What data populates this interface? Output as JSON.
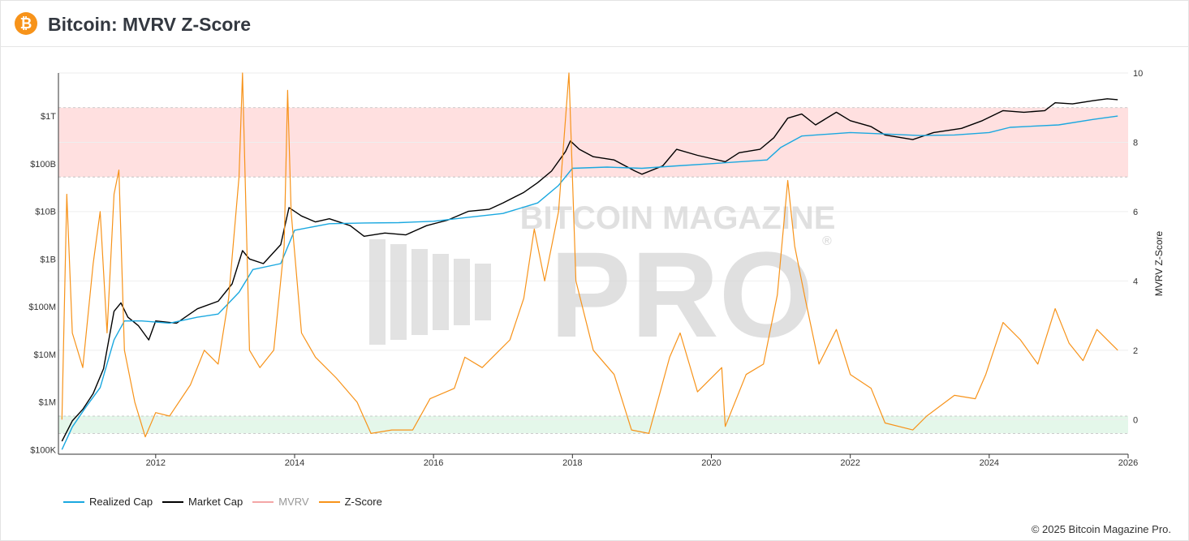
{
  "header": {
    "title": "Bitcoin: MVRV Z-Score",
    "logo_icon": "bitcoin-icon"
  },
  "watermark": {
    "line1": "BITCOIN MAGAZINE",
    "line2": "PRO",
    "mark": "®"
  },
  "footer": {
    "copyright": "© 2025 Bitcoin Magazine Pro."
  },
  "legend": [
    {
      "label": "Realized Cap",
      "color": "#1aa8e0",
      "dim": false
    },
    {
      "label": "Market Cap",
      "color": "#000000",
      "dim": false
    },
    {
      "label": "MVRV",
      "color": "#f4a6a6",
      "dim": true
    },
    {
      "label": "Z-Score",
      "color": "#f7931a",
      "dim": false
    }
  ],
  "chart_data": {
    "type": "line",
    "x_ticks": [
      "2012",
      "2014",
      "2016",
      "2018",
      "2020",
      "2022",
      "2024",
      "2026"
    ],
    "xlim": [
      2010.6,
      2026.0
    ],
    "y_left": {
      "scale": "log",
      "ticks": [
        "$100K",
        "$1M",
        "$10M",
        "$100M",
        "$1B",
        "$10B",
        "$100B",
        "$1T"
      ],
      "range_usd": [
        80000,
        8000000000000
      ]
    },
    "y_right": {
      "label": "MVRV Z-Score",
      "ticks": [
        "0",
        "2",
        "4",
        "6",
        "8",
        "10"
      ],
      "range": [
        -1,
        10
      ]
    },
    "bands": [
      {
        "zone": "overvalued",
        "from": 7,
        "to": 9,
        "color": "#ffe0e0"
      },
      {
        "zone": "undervalued",
        "from": -0.4,
        "to": 0.1,
        "color": "#e4f7ea"
      }
    ],
    "series": [
      {
        "name": "Market Cap",
        "color": "#000000",
        "axis": "left",
        "points": [
          [
            2010.65,
            150000
          ],
          [
            2010.8,
            400000
          ],
          [
            2010.95,
            700000
          ],
          [
            2011.1,
            1500000
          ],
          [
            2011.25,
            5000000
          ],
          [
            2011.4,
            80000000
          ],
          [
            2011.5,
            120000000
          ],
          [
            2011.6,
            60000000
          ],
          [
            2011.75,
            40000000
          ],
          [
            2011.9,
            20000000
          ],
          [
            2012.0,
            50000000
          ],
          [
            2012.3,
            45000000
          ],
          [
            2012.6,
            90000000
          ],
          [
            2012.9,
            130000000
          ],
          [
            2013.1,
            300000000
          ],
          [
            2013.25,
            1500000000
          ],
          [
            2013.35,
            1000000000
          ],
          [
            2013.55,
            800000000
          ],
          [
            2013.8,
            2000000000
          ],
          [
            2013.92,
            12000000000
          ],
          [
            2014.1,
            8000000000
          ],
          [
            2014.3,
            6000000000
          ],
          [
            2014.5,
            7000000000
          ],
          [
            2014.8,
            5000000000
          ],
          [
            2015.0,
            3000000000
          ],
          [
            2015.3,
            3500000000
          ],
          [
            2015.6,
            3200000000
          ],
          [
            2015.9,
            5000000000
          ],
          [
            2016.2,
            6500000000
          ],
          [
            2016.5,
            10000000000
          ],
          [
            2016.8,
            11000000000
          ],
          [
            2017.0,
            15000000000
          ],
          [
            2017.3,
            25000000000
          ],
          [
            2017.5,
            40000000000
          ],
          [
            2017.7,
            70000000000
          ],
          [
            2017.9,
            180000000000
          ],
          [
            2017.97,
            300000000000
          ],
          [
            2018.1,
            200000000000
          ],
          [
            2018.3,
            140000000000
          ],
          [
            2018.6,
            120000000000
          ],
          [
            2018.9,
            70000000000
          ],
          [
            2019.0,
            60000000000
          ],
          [
            2019.3,
            90000000000
          ],
          [
            2019.5,
            200000000000
          ],
          [
            2019.8,
            150000000000
          ],
          [
            2020.2,
            110000000000
          ],
          [
            2020.4,
            170000000000
          ],
          [
            2020.7,
            200000000000
          ],
          [
            2020.9,
            350000000000
          ],
          [
            2021.1,
            900000000000
          ],
          [
            2021.3,
            1100000000000
          ],
          [
            2021.5,
            650000000000
          ],
          [
            2021.8,
            1200000000000
          ],
          [
            2022.0,
            800000000000
          ],
          [
            2022.3,
            600000000000
          ],
          [
            2022.5,
            400000000000
          ],
          [
            2022.9,
            320000000000
          ],
          [
            2023.2,
            450000000000
          ],
          [
            2023.6,
            550000000000
          ],
          [
            2023.9,
            800000000000
          ],
          [
            2024.2,
            1300000000000
          ],
          [
            2024.5,
            1200000000000
          ],
          [
            2024.8,
            1300000000000
          ],
          [
            2024.95,
            1900000000000
          ],
          [
            2025.2,
            1800000000000
          ],
          [
            2025.5,
            2100000000000
          ],
          [
            2025.7,
            2300000000000
          ],
          [
            2025.85,
            2200000000000
          ]
        ]
      },
      {
        "name": "Realized Cap",
        "color": "#1aa8e0",
        "axis": "left",
        "points": [
          [
            2010.65,
            100000
          ],
          [
            2010.8,
            300000
          ],
          [
            2011.0,
            800000
          ],
          [
            2011.2,
            2000000
          ],
          [
            2011.4,
            20000000
          ],
          [
            2011.55,
            50000000
          ],
          [
            2011.8,
            50000000
          ],
          [
            2012.2,
            45000000
          ],
          [
            2012.6,
            60000000
          ],
          [
            2012.9,
            70000000
          ],
          [
            2013.2,
            200000000
          ],
          [
            2013.4,
            600000000
          ],
          [
            2013.8,
            800000000
          ],
          [
            2014.0,
            4000000000
          ],
          [
            2014.5,
            5500000000
          ],
          [
            2015.0,
            5700000000
          ],
          [
            2015.5,
            5800000000
          ],
          [
            2016.0,
            6200000000
          ],
          [
            2016.5,
            7500000000
          ],
          [
            2017.0,
            9000000000
          ],
          [
            2017.5,
            15000000000
          ],
          [
            2017.8,
            35000000000
          ],
          [
            2018.0,
            80000000000
          ],
          [
            2018.5,
            85000000000
          ],
          [
            2019.0,
            80000000000
          ],
          [
            2019.5,
            90000000000
          ],
          [
            2020.0,
            100000000000
          ],
          [
            2020.8,
            120000000000
          ],
          [
            2021.0,
            220000000000
          ],
          [
            2021.3,
            380000000000
          ],
          [
            2022.0,
            450000000000
          ],
          [
            2022.5,
            420000000000
          ],
          [
            2023.0,
            390000000000
          ],
          [
            2023.5,
            400000000000
          ],
          [
            2024.0,
            450000000000
          ],
          [
            2024.3,
            580000000000
          ],
          [
            2025.0,
            650000000000
          ],
          [
            2025.5,
            850000000000
          ],
          [
            2025.85,
            1000000000000
          ]
        ]
      },
      {
        "name": "Z-Score",
        "color": "#f7931a",
        "axis": "right",
        "points": [
          [
            2010.65,
            0
          ],
          [
            2010.72,
            6.5
          ],
          [
            2010.8,
            2.5
          ],
          [
            2010.95,
            1.5
          ],
          [
            2011.1,
            4.5
          ],
          [
            2011.2,
            6.0
          ],
          [
            2011.3,
            2.5
          ],
          [
            2011.4,
            6.5
          ],
          [
            2011.47,
            7.2
          ],
          [
            2011.55,
            2.0
          ],
          [
            2011.7,
            0.5
          ],
          [
            2011.85,
            -0.5
          ],
          [
            2012.0,
            0.2
          ],
          [
            2012.2,
            0.1
          ],
          [
            2012.5,
            1.0
          ],
          [
            2012.7,
            2.0
          ],
          [
            2012.9,
            1.6
          ],
          [
            2013.05,
            3.5
          ],
          [
            2013.2,
            7.0
          ],
          [
            2013.25,
            10.0
          ],
          [
            2013.35,
            2.0
          ],
          [
            2013.5,
            1.5
          ],
          [
            2013.7,
            2.0
          ],
          [
            2013.85,
            5.0
          ],
          [
            2013.9,
            9.5
          ],
          [
            2013.95,
            6.0
          ],
          [
            2014.1,
            2.5
          ],
          [
            2014.3,
            1.8
          ],
          [
            2014.6,
            1.2
          ],
          [
            2014.9,
            0.5
          ],
          [
            2015.1,
            -0.4
          ],
          [
            2015.4,
            -0.3
          ],
          [
            2015.7,
            -0.3
          ],
          [
            2015.95,
            0.6
          ],
          [
            2016.3,
            0.9
          ],
          [
            2016.45,
            1.8
          ],
          [
            2016.7,
            1.5
          ],
          [
            2016.9,
            1.9
          ],
          [
            2017.1,
            2.3
          ],
          [
            2017.3,
            3.5
          ],
          [
            2017.45,
            5.5
          ],
          [
            2017.6,
            4.0
          ],
          [
            2017.8,
            6.0
          ],
          [
            2017.95,
            10.0
          ],
          [
            2018.05,
            4.0
          ],
          [
            2018.3,
            2.0
          ],
          [
            2018.6,
            1.3
          ],
          [
            2018.85,
            -0.3
          ],
          [
            2019.1,
            -0.4
          ],
          [
            2019.4,
            1.8
          ],
          [
            2019.55,
            2.5
          ],
          [
            2019.8,
            0.8
          ],
          [
            2020.15,
            1.5
          ],
          [
            2020.2,
            -0.2
          ],
          [
            2020.5,
            1.3
          ],
          [
            2020.75,
            1.6
          ],
          [
            2020.95,
            3.6
          ],
          [
            2021.1,
            6.9
          ],
          [
            2021.2,
            5.0
          ],
          [
            2021.35,
            3.5
          ],
          [
            2021.55,
            1.6
          ],
          [
            2021.8,
            2.6
          ],
          [
            2022.0,
            1.3
          ],
          [
            2022.3,
            0.9
          ],
          [
            2022.5,
            -0.1
          ],
          [
            2022.9,
            -0.3
          ],
          [
            2023.1,
            0.1
          ],
          [
            2023.5,
            0.7
          ],
          [
            2023.8,
            0.6
          ],
          [
            2023.95,
            1.3
          ],
          [
            2024.2,
            2.8
          ],
          [
            2024.45,
            2.3
          ],
          [
            2024.7,
            1.6
          ],
          [
            2024.95,
            3.2
          ],
          [
            2025.15,
            2.2
          ],
          [
            2025.35,
            1.7
          ],
          [
            2025.55,
            2.6
          ],
          [
            2025.75,
            2.2
          ],
          [
            2025.85,
            2.0
          ]
        ]
      }
    ]
  }
}
